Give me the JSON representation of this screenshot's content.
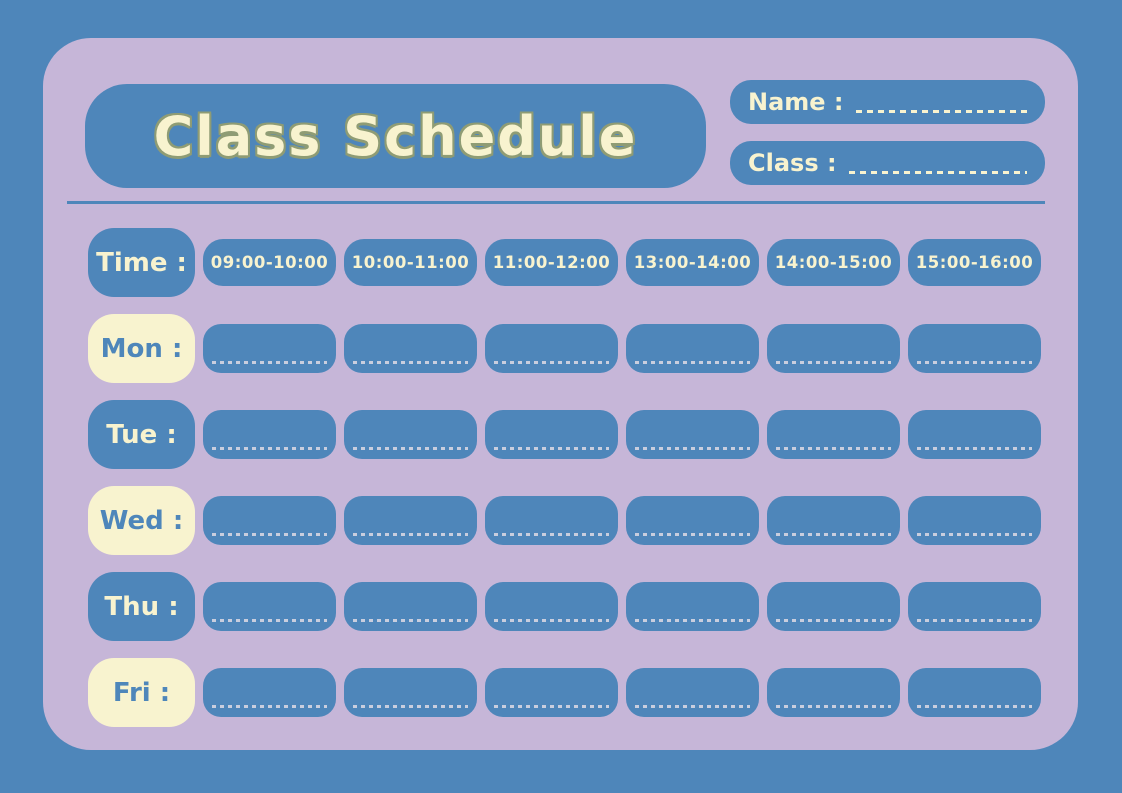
{
  "title": "Class Schedule",
  "fields": {
    "name_label": "Name :",
    "class_label": "Class :"
  },
  "schedule": {
    "time_label": "Time :",
    "time_slots": [
      "09:00-10:00",
      "10:00-11:00",
      "11:00-12:00",
      "13:00-14:00",
      "14:00-15:00",
      "15:00-16:00"
    ],
    "days": [
      {
        "label": "Mon :",
        "variant": "cream"
      },
      {
        "label": "Tue :",
        "variant": "blue"
      },
      {
        "label": "Wed :",
        "variant": "cream"
      },
      {
        "label": "Thu :",
        "variant": "blue"
      },
      {
        "label": "Fri :",
        "variant": "cream"
      }
    ],
    "cells_per_row": 6
  },
  "colors": {
    "background_blue": "#4e86ba",
    "card_lavender": "#c6b6d8",
    "cream": "#f8f3cf",
    "title_outline_olive": "#8f9c74",
    "cell_dash": "#c9cede"
  }
}
